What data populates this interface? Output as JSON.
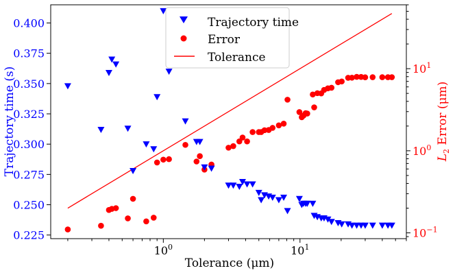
{
  "chart_data": {
    "type": "scatter",
    "xlabel": "Tolerance (μm)",
    "xscale": "log",
    "xlim": [
      0.15,
      60
    ],
    "x_ticks": [
      {
        "value": 1,
        "base": "10",
        "exp": "0"
      },
      {
        "value": 10,
        "base": "10",
        "exp": "1"
      }
    ],
    "y_left": {
      "label": "Trajectory time (s)",
      "lim": [
        0.222,
        0.415
      ],
      "ticks": [
        "0.225",
        "0.250",
        "0.275",
        "0.300",
        "0.325",
        "0.350",
        "0.375",
        "0.400"
      ],
      "color": "#0000ff"
    },
    "y_right": {
      "label_base": "L",
      "label_sub": "2",
      "label_rest": " Error (μm)",
      "scale": "log",
      "lim": [
        0.085,
        60
      ],
      "ticks": [
        {
          "value": 0.1,
          "base": "10",
          "exp": "−1"
        },
        {
          "value": 1,
          "base": "10",
          "exp": "0"
        },
        {
          "value": 10,
          "base": "10",
          "exp": "1"
        }
      ],
      "color": "#ff0000"
    },
    "legend": {
      "placement": "top-center",
      "entries": [
        "Trajectory time",
        "Error",
        "Tolerance"
      ]
    },
    "series": [
      {
        "name": "Trajectory time",
        "axis": "left",
        "marker": "triangle-down",
        "color": "#0000ff",
        "points": [
          [
            0.2,
            0.348
          ],
          [
            0.35,
            0.312
          ],
          [
            0.4,
            0.359
          ],
          [
            0.42,
            0.37
          ],
          [
            0.45,
            0.366
          ],
          [
            0.55,
            0.313
          ],
          [
            0.6,
            0.278
          ],
          [
            0.75,
            0.3
          ],
          [
            0.85,
            0.296
          ],
          [
            0.9,
            0.339
          ],
          [
            1.0,
            0.41
          ],
          [
            1.1,
            0.36
          ],
          [
            1.45,
            0.319
          ],
          [
            1.75,
            0.302
          ],
          [
            1.85,
            0.302
          ],
          [
            2.0,
            0.281
          ],
          [
            2.25,
            0.28
          ],
          [
            3.0,
            0.266
          ],
          [
            3.25,
            0.266
          ],
          [
            3.6,
            0.265
          ],
          [
            3.8,
            0.269
          ],
          [
            4.1,
            0.267
          ],
          [
            4.5,
            0.267
          ],
          [
            5.0,
            0.26
          ],
          [
            5.2,
            0.254
          ],
          [
            5.5,
            0.258
          ],
          [
            5.9,
            0.257
          ],
          [
            6.3,
            0.256
          ],
          [
            7.0,
            0.254
          ],
          [
            7.6,
            0.256
          ],
          [
            8.1,
            0.245
          ],
          [
            9.9,
            0.255
          ],
          [
            10.3,
            0.25
          ],
          [
            10.6,
            0.251
          ],
          [
            11.0,
            0.251
          ],
          [
            11.3,
            0.251
          ],
          [
            12.4,
            0.251
          ],
          [
            12.7,
            0.241
          ],
          [
            13.4,
            0.24
          ],
          [
            14.3,
            0.239
          ],
          [
            15.0,
            0.239
          ],
          [
            16.0,
            0.238
          ],
          [
            17.0,
            0.236
          ],
          [
            19.0,
            0.235
          ],
          [
            20.2,
            0.234
          ],
          [
            22.5,
            0.234
          ],
          [
            24.0,
            0.233
          ],
          [
            26.0,
            0.233
          ],
          [
            28.0,
            0.233
          ],
          [
            30.0,
            0.233
          ],
          [
            34.0,
            0.233
          ],
          [
            40.0,
            0.233
          ],
          [
            44.0,
            0.233
          ],
          [
            47.0,
            0.233
          ]
        ]
      },
      {
        "name": "Error",
        "axis": "right",
        "marker": "circle",
        "color": "#ff0000",
        "points": [
          [
            0.2,
            0.11
          ],
          [
            0.35,
            0.122
          ],
          [
            0.4,
            0.19
          ],
          [
            0.42,
            0.196
          ],
          [
            0.45,
            0.2
          ],
          [
            0.55,
            0.15
          ],
          [
            0.6,
            0.26
          ],
          [
            0.75,
            0.138
          ],
          [
            0.85,
            0.153
          ],
          [
            0.9,
            0.72
          ],
          [
            1.0,
            0.78
          ],
          [
            1.1,
            0.79
          ],
          [
            1.45,
            1.18
          ],
          [
            1.75,
            0.74
          ],
          [
            1.85,
            0.86
          ],
          [
            2.0,
            0.59
          ],
          [
            2.25,
            0.68
          ],
          [
            3.0,
            1.09
          ],
          [
            3.25,
            1.14
          ],
          [
            3.6,
            1.3
          ],
          [
            3.8,
            1.45
          ],
          [
            4.1,
            1.3
          ],
          [
            4.5,
            1.69
          ],
          [
            5.0,
            1.69
          ],
          [
            5.2,
            1.69
          ],
          [
            5.5,
            1.78
          ],
          [
            5.9,
            1.79
          ],
          [
            6.3,
            1.9
          ],
          [
            7.0,
            2.04
          ],
          [
            7.6,
            2.14
          ],
          [
            8.1,
            4.19
          ],
          [
            9.9,
            2.96
          ],
          [
            10.3,
            2.56
          ],
          [
            10.6,
            2.68
          ],
          [
            11.0,
            2.87
          ],
          [
            11.3,
            2.84
          ],
          [
            12.4,
            4.85
          ],
          [
            12.7,
            3.38
          ],
          [
            13.4,
            5.03
          ],
          [
            14.3,
            5.0
          ],
          [
            15.0,
            5.5
          ],
          [
            16.0,
            5.76
          ],
          [
            17.0,
            5.86
          ],
          [
            19.0,
            6.84
          ],
          [
            20.2,
            6.99
          ],
          [
            22.5,
            7.74
          ],
          [
            24.0,
            7.77
          ],
          [
            26.0,
            7.95
          ],
          [
            28.0,
            7.93
          ],
          [
            30.0,
            7.85
          ],
          [
            34.0,
            7.88
          ],
          [
            40.0,
            7.87
          ],
          [
            44.0,
            7.87
          ],
          [
            47.0,
            7.88
          ]
        ]
      },
      {
        "name": "Tolerance",
        "axis": "right",
        "marker": "line",
        "color": "#ff0000",
        "points": [
          [
            0.2,
            0.2
          ],
          [
            47.0,
            47.0
          ]
        ]
      }
    ]
  }
}
